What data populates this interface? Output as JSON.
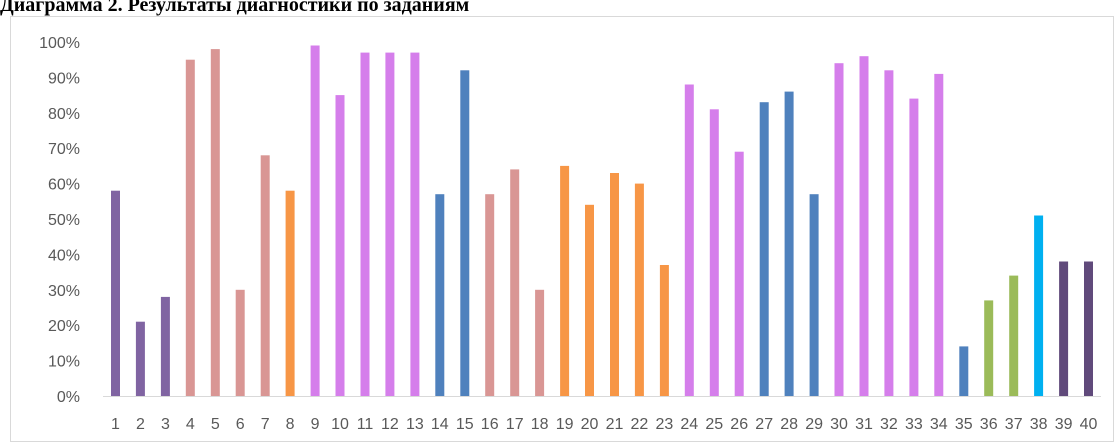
{
  "chart_data": {
    "type": "bar",
    "title": "Диаграмма 2. Результаты диагностики по заданиям",
    "xlabel": "",
    "ylabel": "",
    "ylim": [
      0,
      100
    ],
    "yticks": [
      "0%",
      "10%",
      "20%",
      "30%",
      "40%",
      "50%",
      "60%",
      "70%",
      "80%",
      "90%",
      "100%"
    ],
    "grid": false,
    "legend": "none",
    "categories": [
      "1",
      "2",
      "3",
      "4",
      "5",
      "6",
      "7",
      "8",
      "9",
      "10",
      "11",
      "12",
      "13",
      "14",
      "15",
      "16",
      "17",
      "18",
      "19",
      "20",
      "21",
      "22",
      "23",
      "24",
      "25",
      "26",
      "27",
      "28",
      "29",
      "30",
      "31",
      "32",
      "33",
      "34",
      "35",
      "36",
      "37",
      "38",
      "39",
      "40"
    ],
    "values": [
      58,
      21,
      28,
      95,
      98,
      30,
      68,
      58,
      99,
      85,
      97,
      97,
      97,
      57,
      92,
      57,
      64,
      30,
      65,
      54,
      63,
      60,
      37,
      88,
      81,
      69,
      83,
      86,
      57,
      94,
      96,
      92,
      84,
      91,
      14,
      27,
      34,
      51,
      38,
      38
    ],
    "colors": [
      "#8064a2",
      "#8064a2",
      "#8064a2",
      "#d99694",
      "#d99694",
      "#d99694",
      "#d99694",
      "#f79646",
      "#d57eeb",
      "#d57eeb",
      "#d57eeb",
      "#d57eeb",
      "#d57eeb",
      "#4f81bd",
      "#4f81bd",
      "#d99694",
      "#d99694",
      "#d99694",
      "#f79646",
      "#f79646",
      "#f79646",
      "#f79646",
      "#f79646",
      "#d57eeb",
      "#d57eeb",
      "#d57eeb",
      "#4f81bd",
      "#4f81bd",
      "#4f81bd",
      "#d57eeb",
      "#d57eeb",
      "#d57eeb",
      "#d57eeb",
      "#d57eeb",
      "#4f81bd",
      "#9bbb59",
      "#9bbb59",
      "#00b0f0",
      "#604a7b",
      "#604a7b"
    ]
  }
}
